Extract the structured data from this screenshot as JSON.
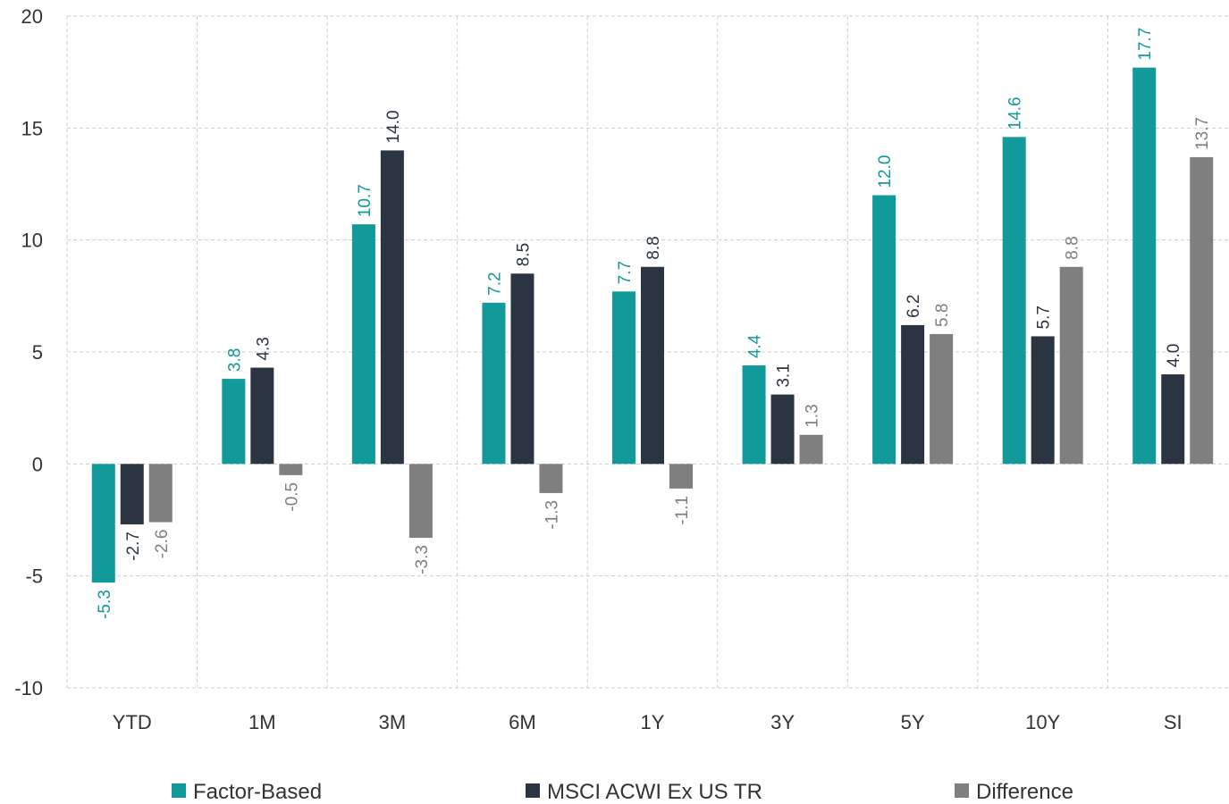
{
  "chart_data": {
    "type": "bar",
    "title": "",
    "xlabel": "",
    "ylabel": "",
    "categories": [
      "YTD",
      "1M",
      "3M",
      "6M",
      "1Y",
      "3Y",
      "5Y",
      "10Y",
      "SI"
    ],
    "ylim": [
      -10,
      20
    ],
    "yticks": [
      "20",
      "15",
      "10",
      "5",
      "0",
      "-5",
      "-10"
    ],
    "grid": true,
    "legend_position": "bottom",
    "series": [
      {
        "name": "Factor-Based",
        "color": "#12999a",
        "values": [
          -5.3,
          3.8,
          10.7,
          7.2,
          7.7,
          4.4,
          12.0,
          14.6,
          17.7
        ],
        "labels": [
          "-5.3",
          "3.8",
          "10.7",
          "7.2",
          "7.7",
          "4.4",
          "12.0",
          "14.6",
          "17.7"
        ]
      },
      {
        "name": "MSCI ACWI Ex US TR",
        "color": "#2a3541",
        "values": [
          -2.7,
          4.3,
          14.0,
          8.5,
          8.8,
          3.1,
          6.2,
          5.7,
          4.0
        ],
        "labels": [
          "-2.7",
          "4.3",
          "14.0",
          "8.5",
          "8.8",
          "3.1",
          "6.2",
          "5.7",
          "4.0"
        ]
      },
      {
        "name": "Difference",
        "color": "#7f7f7f",
        "values": [
          -2.6,
          -0.5,
          -3.3,
          -1.3,
          -1.1,
          1.3,
          5.8,
          8.8,
          13.7
        ],
        "labels": [
          "-2.6",
          "-0.5",
          "-3.3",
          "-1.3",
          "-1.1",
          "1.3",
          "5.8",
          "8.8",
          "13.7"
        ]
      }
    ]
  }
}
